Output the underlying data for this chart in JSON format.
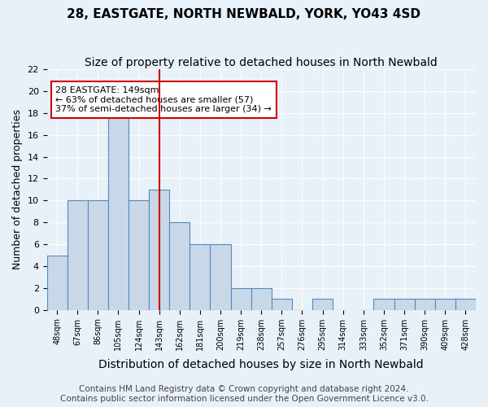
{
  "title": "28, EASTGATE, NORTH NEWBALD, YORK, YO43 4SD",
  "subtitle": "Size of property relative to detached houses in North Newbald",
  "xlabel": "Distribution of detached houses by size in North Newbald",
  "ylabel": "Number of detached properties",
  "bar_labels": [
    "48sqm",
    "67sqm",
    "86sqm",
    "105sqm",
    "124sqm",
    "143sqm",
    "162sqm",
    "181sqm",
    "200sqm",
    "219sqm",
    "238sqm",
    "257sqm",
    "276sqm",
    "295sqm",
    "314sqm",
    "333sqm",
    "352sqm",
    "371sqm",
    "390sqm",
    "409sqm",
    "428sqm"
  ],
  "bar_values": [
    5,
    10,
    10,
    18,
    10,
    11,
    8,
    6,
    6,
    2,
    2,
    1,
    0,
    1,
    0,
    0,
    1,
    1,
    1,
    1,
    1
  ],
  "bar_color": "#c8d8e8",
  "bar_edge_color": "#5588bb",
  "property_line_x": 5,
  "annotation_text": "28 EASTGATE: 149sqm\n← 63% of detached houses are smaller (57)\n37% of semi-detached houses are larger (34) →",
  "annotation_box_color": "#ffffff",
  "annotation_box_edge_color": "#cc0000",
  "vline_color": "#cc0000",
  "ylim": [
    0,
    22
  ],
  "yticks": [
    0,
    2,
    4,
    6,
    8,
    10,
    12,
    14,
    16,
    18,
    20,
    22
  ],
  "footer1": "Contains HM Land Registry data © Crown copyright and database right 2024.",
  "footer2": "Contains public sector information licensed under the Open Government Licence v3.0.",
  "background_color": "#e8f0f8",
  "title_fontsize": 11,
  "subtitle_fontsize": 10,
  "xlabel_fontsize": 10,
  "ylabel_fontsize": 9,
  "footer_fontsize": 7.5
}
